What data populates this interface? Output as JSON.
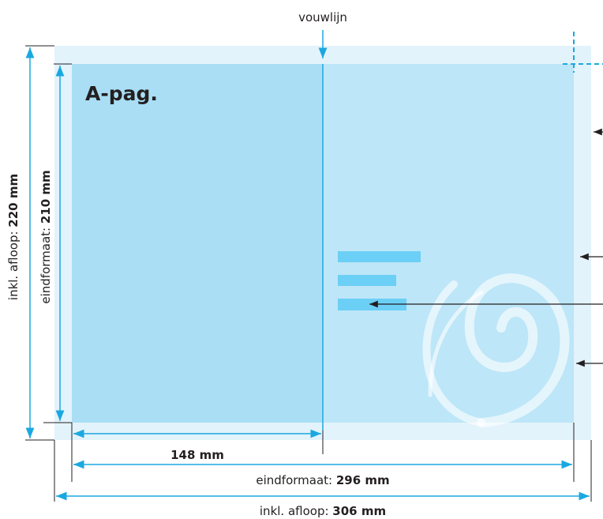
{
  "fold_label": "vouwlijn",
  "page_label": "A-pag.",
  "height_bleed": {
    "prefix": "inkl. afloop: ",
    "value": "220 mm"
  },
  "height_trim": {
    "prefix": "eindformaat: ",
    "value": "210 mm"
  },
  "half_width": "148 mm",
  "width_trim": {
    "prefix": "eindformaat: ",
    "value": "296 mm"
  },
  "width_bleed": {
    "prefix": "inkl. afloop: ",
    "value": "306 mm"
  }
}
